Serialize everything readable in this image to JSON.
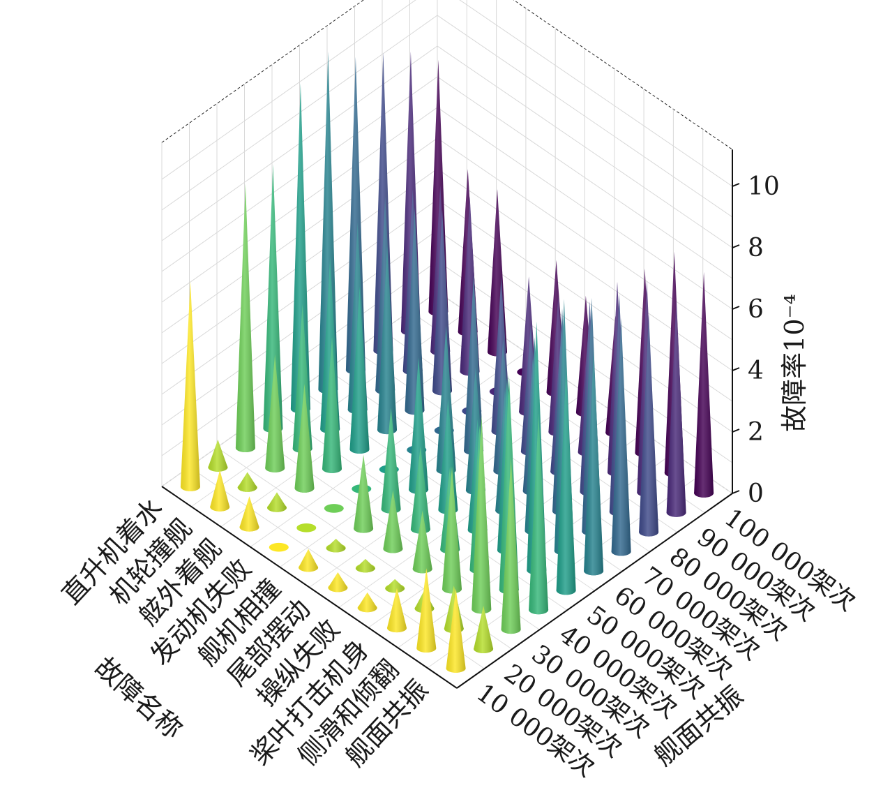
{
  "chart_data": {
    "type": "3d-cone",
    "zlabel": "故障率10⁻⁴",
    "xlabel": "故障名称",
    "ylabel": "舰面共振",
    "zlim": [
      0,
      11
    ],
    "z_ticks": [
      "0",
      "2",
      "4",
      "6",
      "8",
      "10"
    ],
    "fault_names": [
      "直升机着水",
      "机轮撞舰",
      "舷外着舰",
      "发动机失败",
      "舰机相撞",
      "尾部摆动",
      "操纵失败",
      "桨叶打击机身",
      "侧滑和倾翻",
      "舰面共振"
    ],
    "flights": [
      "10 000架次",
      "20 000架次",
      "30 000架次",
      "40 000架次",
      "50 000架次",
      "60 000架次",
      "70 000架次",
      "80 000架次",
      "90 000架次",
      "100 000架次"
    ],
    "values": [
      [
        6.7,
        1.2,
        1.0,
        0.1,
        0.6,
        0.5,
        0.5,
        1.3,
        2.6,
        2.6
      ],
      [
        0.9,
        0.5,
        0.5,
        0.1,
        0.3,
        0.3,
        0.3,
        0.6,
        1.4,
        1.4
      ],
      [
        8.6,
        3.7,
        3.4,
        0.2,
        2.4,
        1.9,
        1.9,
        4.0,
        6.3,
        5.6
      ],
      [
        8.6,
        4.7,
        4.3,
        0.2,
        3.3,
        2.7,
        2.7,
        4.7,
        7.0,
        6.4
      ],
      [
        10.6,
        5.6,
        5.3,
        0.2,
        4.3,
        3.6,
        3.6,
        5.6,
        8.1,
        7.3
      ],
      [
        11.0,
        6.1,
        6.0,
        0.2,
        4.7,
        4.0,
        4.0,
        6.3,
        8.2,
        7.2
      ],
      [
        10.2,
        6.3,
        6.6,
        0.2,
        5.7,
        4.3,
        4.3,
        6.6,
        7.6,
        7.6
      ],
      [
        9.7,
        5.9,
        5.9,
        0.2,
        5.0,
        4.1,
        4.1,
        6.2,
        7.1,
        7.1
      ],
      [
        9.1,
        5.4,
        5.7,
        0.2,
        4.4,
        4.4,
        3.7,
        6.2,
        6.9,
        6.9
      ],
      [
        8.2,
        5.3,
        5.3,
        0.2,
        4.3,
        3.8,
        3.8,
        6.0,
        7.2,
        7.2
      ]
    ],
    "colormap": [
      "#fde725",
      "#b5de2b",
      "#6ece58",
      "#35b779",
      "#1f9e89",
      "#26828e",
      "#31688e",
      "#3e4989",
      "#482878",
      "#440154"
    ],
    "grid": true
  }
}
